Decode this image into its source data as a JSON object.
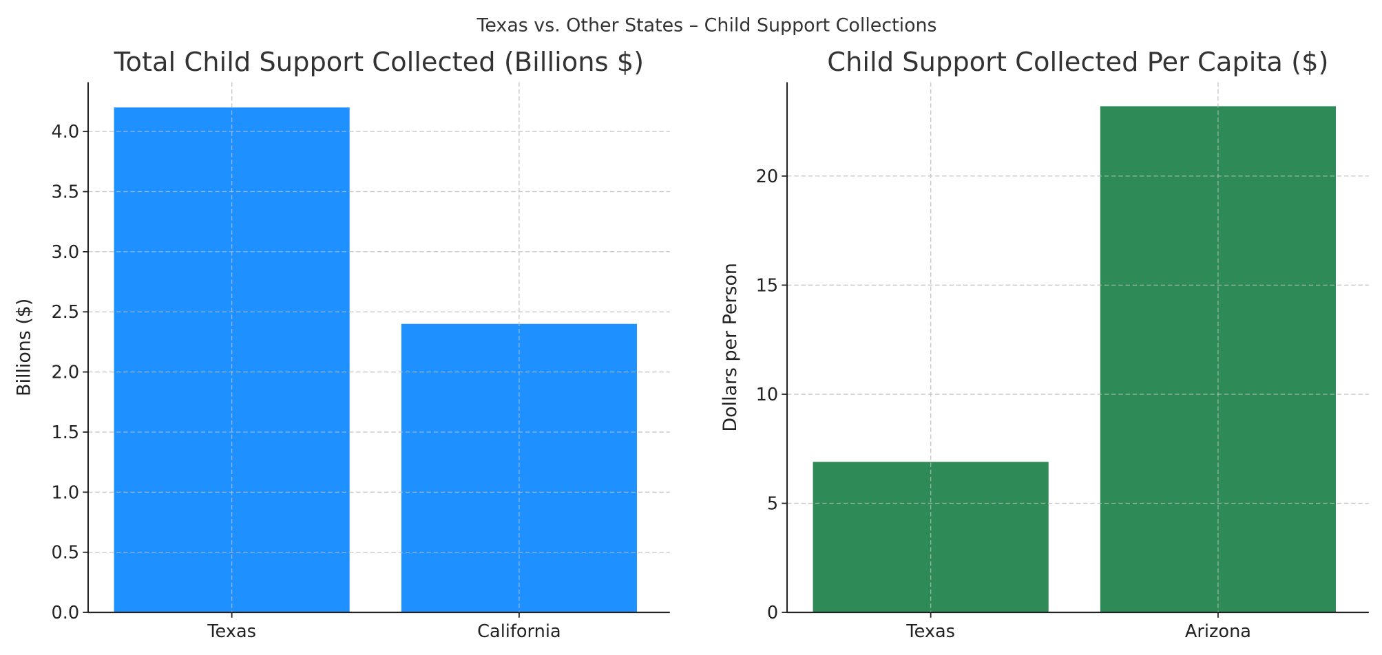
{
  "suptitle": "Texas vs. Other States – Child Support Collections",
  "chart_data": [
    {
      "type": "bar",
      "title": "Total Child Support Collected (Billions $)",
      "xlabel": "",
      "ylabel": "Billions ($)",
      "categories": [
        "Texas",
        "California"
      ],
      "values": [
        4.2,
        2.4
      ],
      "ylim": [
        0,
        4.41
      ],
      "yticks": [
        0,
        0.5,
        1,
        1.5,
        2,
        2.5,
        3,
        3.5,
        4
      ],
      "ytick_labels": [
        "0.0",
        "0.5",
        "1.0",
        "1.5",
        "2.0",
        "2.5",
        "3.0",
        "3.5",
        "4.0"
      ],
      "color": "#1e90ff",
      "grid": true
    },
    {
      "type": "bar",
      "title": "Child Support Collected Per Capita ($)",
      "xlabel": "",
      "ylabel": "Dollars per Person",
      "categories": [
        "Texas",
        "Arizona"
      ],
      "values": [
        6.9,
        23.2
      ],
      "ylim": [
        0,
        24.3
      ],
      "yticks": [
        0,
        5,
        10,
        15,
        20
      ],
      "ytick_labels": [
        "0",
        "5",
        "10",
        "15",
        "20"
      ],
      "color": "#2e8b57",
      "grid": true
    }
  ]
}
